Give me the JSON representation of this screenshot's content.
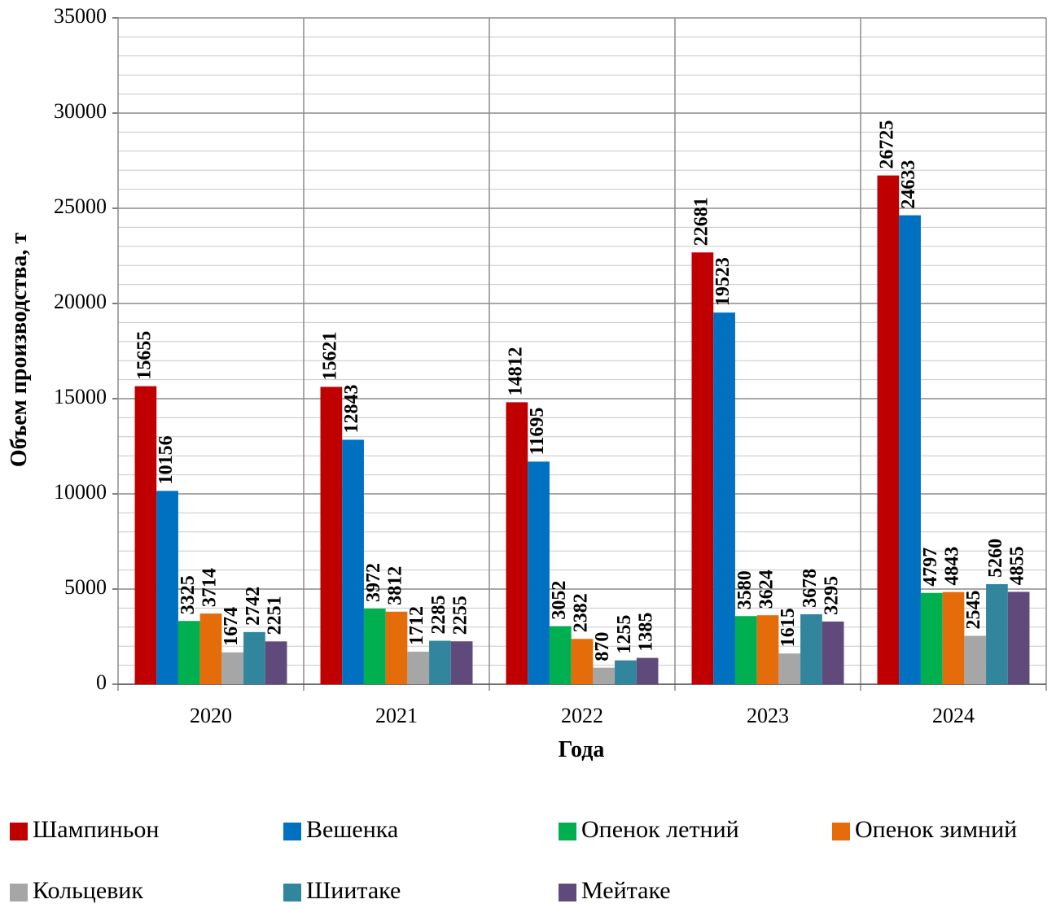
{
  "chart_data": {
    "type": "bar",
    "x_label": "Года",
    "y_label": "Объем производства, т",
    "categories": [
      "2020",
      "2021",
      "2022",
      "2023",
      "2024"
    ],
    "series": [
      {
        "name": "Шампиньон",
        "color": "#c00000",
        "values": [
          15655,
          15621,
          14812,
          22681,
          26725
        ]
      },
      {
        "name": "Вешенка",
        "color": "#0070c0",
        "values": [
          10156,
          12843,
          11695,
          19523,
          24633
        ]
      },
      {
        "name": "Опенок летний",
        "color": "#00b050",
        "values": [
          3325,
          3972,
          3052,
          3580,
          4797
        ]
      },
      {
        "name": "Опенок зимний",
        "color": "#e46c0a",
        "values": [
          3714,
          3812,
          2382,
          3624,
          4843
        ]
      },
      {
        "name": "Кольцевик",
        "color": "#a6a6a6",
        "values": [
          1674,
          1712,
          870,
          1615,
          2545
        ]
      },
      {
        "name": "Шиитаке",
        "color": "#31859c",
        "values": [
          2742,
          2285,
          1255,
          3678,
          5260
        ]
      },
      {
        "name": "Мейтаке",
        "color": "#604a7b",
        "values": [
          2251,
          2255,
          1385,
          3295,
          4855
        ]
      }
    ],
    "ylim": [
      0,
      35000
    ],
    "yticks": [
      0,
      5000,
      10000,
      15000,
      20000,
      25000,
      30000,
      35000
    ],
    "minor_yticks": [
      1000,
      2000,
      3000,
      4000,
      6000,
      7000,
      8000,
      9000,
      11000,
      12000,
      13000,
      14000,
      16000,
      17000,
      18000,
      19000,
      21000,
      22000,
      23000,
      24000,
      26000,
      27000,
      28000,
      29000,
      31000,
      32000,
      33000,
      34000
    ],
    "grid": true,
    "legend": "bottom"
  }
}
